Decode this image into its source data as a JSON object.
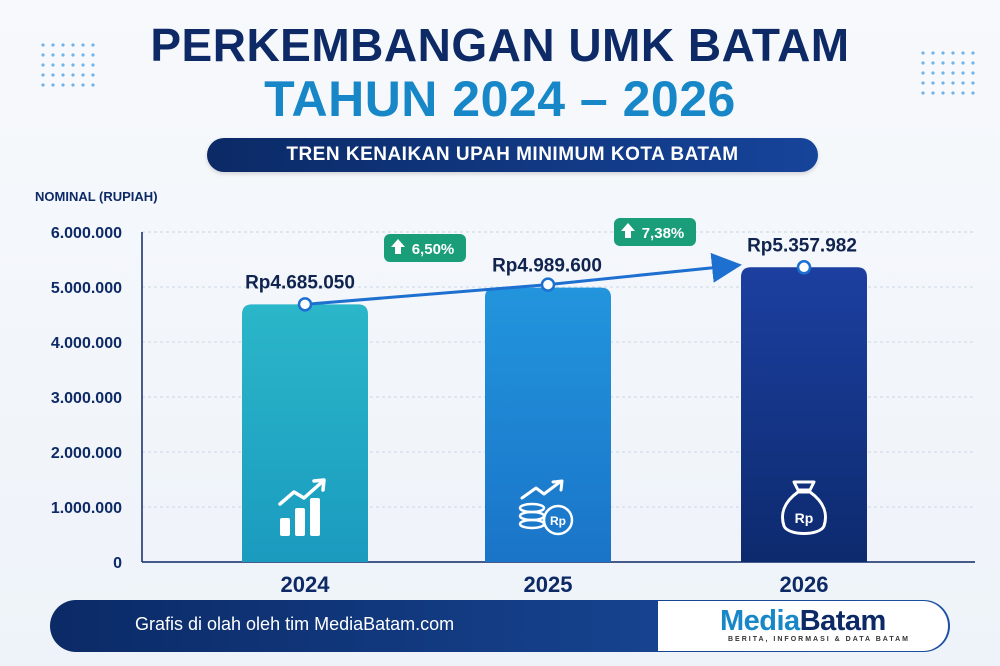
{
  "title_line1": "PERKEMBANGAN UMK BATAM",
  "title_line2": "TAHUN 2024 – 2026",
  "subtitle": "TREN KENAIKAN UPAH MINIMUM KOTA BATAM",
  "footer": {
    "credit": "Grafis di olah oleh tim MediaBatam.com",
    "logo_part1": "Media",
    "logo_part2": "Batam",
    "logo_tagline": "BERITA, INFORMASI & DATA BATAM"
  },
  "icons": [
    "growth-chart-icon",
    "coins-growth-icon",
    "money-bag-icon"
  ],
  "colors": {
    "navy": "#0d2a66",
    "blue": "#1787c8",
    "green": "#1a9e7a"
  },
  "chart_data": {
    "type": "bar",
    "title": "PERKEMBANGAN UMK BATAM TAHUN 2024 – 2026",
    "ylabel": "NOMINAL (RUPIAH)",
    "xlabel": "",
    "categories": [
      "2024",
      "2025",
      "2026"
    ],
    "values": [
      4685050,
      4989600,
      5357982
    ],
    "value_labels": [
      "Rp4.685.050",
      "Rp4.989.600",
      "Rp5.357.982"
    ],
    "growth_labels": [
      "6,50%",
      "7,38%"
    ],
    "ylim": [
      0,
      6000000
    ],
    "yticks": [
      0,
      1000000,
      2000000,
      3000000,
      4000000,
      5000000,
      6000000
    ],
    "ytick_labels": [
      "0",
      "1.000.000",
      "2.000.000",
      "3.000.000",
      "4.000.000",
      "5.000.000",
      "6.000.000"
    ],
    "grid": true,
    "trend_line": true
  }
}
